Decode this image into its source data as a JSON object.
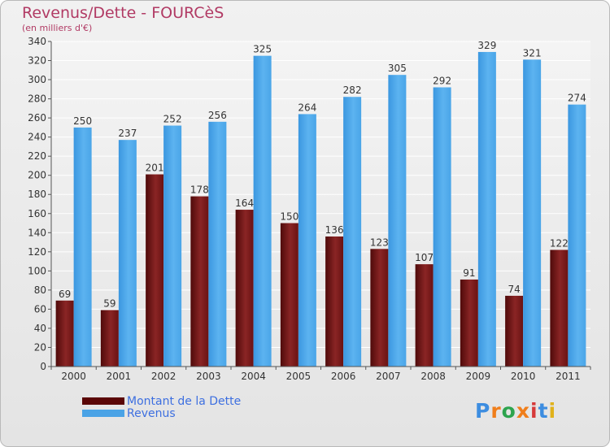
{
  "header": {
    "title": "Revenus/Dette - FOURCèS",
    "subtitle": "(en milliers d'€)"
  },
  "legend": {
    "items": [
      {
        "label": "Montant de la Dette",
        "color": "#6b0c0c"
      },
      {
        "label": "Revenus",
        "color": "#4aa3e6"
      }
    ]
  },
  "branding": {
    "logo_text": "Proxiti",
    "logo_colors": [
      "#3d8de0",
      "#f07e1b",
      "#2da44e",
      "#f07e1b",
      "#d63a3a",
      "#3d8de0",
      "#e0b21b"
    ]
  },
  "chart_data": {
    "type": "bar",
    "title": "Revenus/Dette - FOURCèS",
    "subtitle": "(en milliers d'€)",
    "categories": [
      "2000",
      "2001",
      "2002",
      "2003",
      "2004",
      "2005",
      "2006",
      "2007",
      "2008",
      "2009",
      "2010",
      "2011"
    ],
    "series": [
      {
        "name": "Montant de la Dette",
        "values": [
          69,
          59,
          201,
          178,
          164,
          150,
          136,
          123,
          107,
          91,
          74,
          122
        ],
        "color": "#7a1a1a"
      },
      {
        "name": "Revenus",
        "values": [
          250,
          237,
          252,
          256,
          325,
          264,
          282,
          305,
          292,
          329,
          321,
          274
        ],
        "color": "#4aa3e6"
      }
    ],
    "ylim": [
      0,
      340
    ],
    "yticks": [
      0,
      20,
      40,
      60,
      80,
      100,
      120,
      140,
      160,
      180,
      200,
      220,
      240,
      260,
      280,
      300,
      320,
      340
    ],
    "grid": true,
    "legend_position": "bottom-left"
  }
}
